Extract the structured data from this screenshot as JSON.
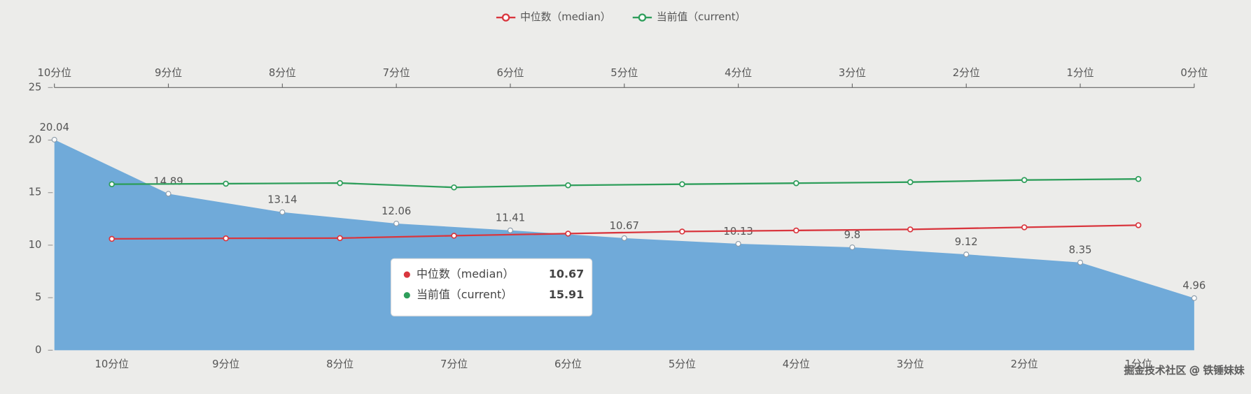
{
  "chart_data": {
    "type": "line",
    "categories": [
      "10分位",
      "9分位",
      "8分位",
      "7分位",
      "6分位",
      "5分位",
      "4分位",
      "3分位",
      "2分位",
      "1分位"
    ],
    "top_categories": [
      "10分位",
      "9分位",
      "8分位",
      "7分位",
      "6分位",
      "5分位",
      "4分位",
      "3分位",
      "2分位",
      "1分位",
      "0分位"
    ],
    "area": {
      "color": "#5b9fd6",
      "values": [
        20.04,
        14.89,
        13.14,
        12.06,
        11.41,
        10.67,
        10.13,
        9.8,
        9.12,
        8.35,
        4.96
      ]
    },
    "series": [
      {
        "name": "中位数（median）",
        "color": "#d9363e",
        "values": [
          10.6,
          10.65,
          10.67,
          10.9,
          11.1,
          11.3,
          11.4,
          11.5,
          11.7,
          11.9
        ]
      },
      {
        "name": "当前值（current）",
        "color": "#2e9e5b",
        "values": [
          15.8,
          15.85,
          15.91,
          15.5,
          15.7,
          15.8,
          15.9,
          16.0,
          16.2,
          16.3
        ]
      }
    ],
    "ylim": [
      0,
      25
    ],
    "yticks": [
      0,
      5,
      10,
      15,
      20,
      25
    ],
    "watermark": "掘金技术社区 @ 铁锤妹妹"
  }
}
